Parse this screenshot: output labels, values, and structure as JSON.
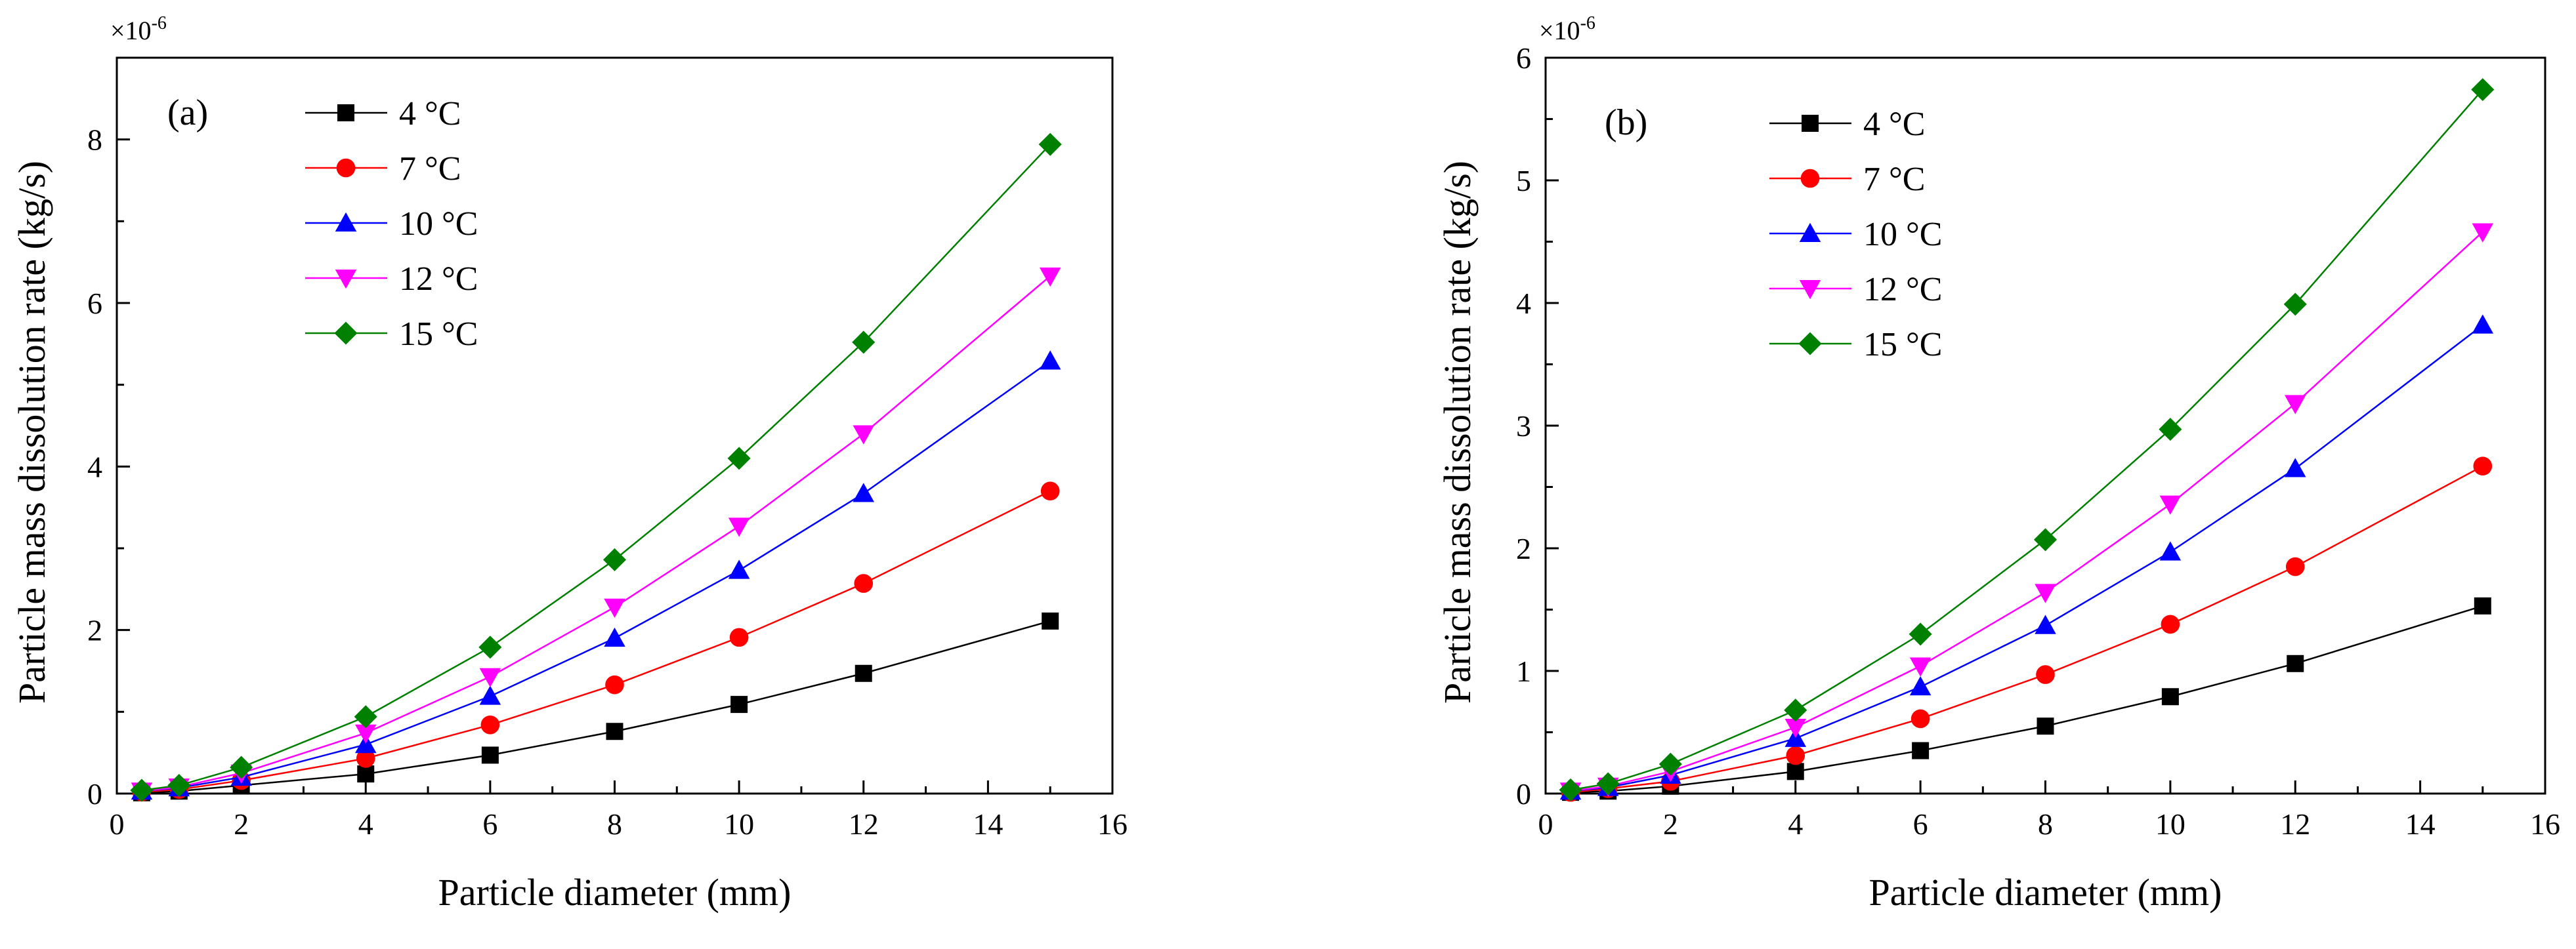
{
  "chart_data": [
    {
      "type": "line",
      "panel_label": "(a)",
      "xlabel": "Particle diameter (mm)",
      "ylabel": "Particle mass dissolution rate (kg/s)",
      "y_multiplier": "×10",
      "y_exponent": "-6",
      "xlim": [
        0,
        16
      ],
      "ylim": [
        0,
        9
      ],
      "xticks": [
        "0",
        "2",
        "4",
        "6",
        "8",
        "10",
        "12",
        "14",
        "16"
      ],
      "xtick_values": [
        0,
        2,
        4,
        6,
        8,
        10,
        12,
        14,
        16
      ],
      "yticks": [
        "0",
        "2",
        "4",
        "6",
        "8"
      ],
      "ytick_values": [
        0,
        2,
        4,
        6,
        8
      ],
      "legend_position": "top-left",
      "x": [
        0.4,
        1,
        2,
        4,
        6,
        8,
        10,
        12,
        15
      ],
      "series": [
        {
          "name": "4 °C",
          "color": "#000000",
          "marker": "square",
          "values": [
            0.01,
            0.03,
            0.1,
            0.24,
            0.47,
            0.76,
            1.09,
            1.47,
            2.11
          ]
        },
        {
          "name": "7 °C",
          "color": "#ff0000",
          "marker": "circle",
          "values": [
            0.02,
            0.05,
            0.16,
            0.43,
            0.84,
            1.33,
            1.91,
            2.57,
            3.7
          ]
        },
        {
          "name": "10 °C",
          "color": "#0000ff",
          "marker": "triangle-up",
          "values": [
            0.03,
            0.07,
            0.2,
            0.6,
            1.19,
            1.9,
            2.73,
            3.67,
            5.29
          ]
        },
        {
          "name": "12 °C",
          "color": "#ff00ff",
          "marker": "triangle-down",
          "values": [
            0.03,
            0.08,
            0.25,
            0.74,
            1.43,
            2.28,
            3.27,
            4.4,
            6.33
          ]
        },
        {
          "name": "15 °C",
          "color": "#008000",
          "marker": "diamond",
          "values": [
            0.04,
            0.1,
            0.32,
            0.94,
            1.79,
            2.86,
            4.1,
            5.52,
            7.94
          ]
        }
      ]
    },
    {
      "type": "line",
      "panel_label": "(b)",
      "xlabel": "Particle diameter (mm)",
      "ylabel": "Particle mass dissolution rate (kg/s)",
      "y_multiplier": "×10",
      "y_exponent": "-6",
      "xlim": [
        0,
        16
      ],
      "ylim": [
        0,
        6
      ],
      "xticks": [
        "0",
        "2",
        "4",
        "6",
        "8",
        "10",
        "12",
        "14",
        "16"
      ],
      "xtick_values": [
        0,
        2,
        4,
        6,
        8,
        10,
        12,
        14,
        16
      ],
      "yticks": [
        "0",
        "1",
        "2",
        "3",
        "4",
        "5",
        "6"
      ],
      "ytick_values": [
        0,
        1,
        2,
        3,
        4,
        5,
        6
      ],
      "legend_position": "top-left",
      "x": [
        0.4,
        1,
        2,
        4,
        6,
        8,
        10,
        12,
        15
      ],
      "series": [
        {
          "name": "4 °C",
          "color": "#000000",
          "marker": "square",
          "values": [
            0.01,
            0.02,
            0.06,
            0.18,
            0.35,
            0.55,
            0.79,
            1.06,
            1.53
          ]
        },
        {
          "name": "7 °C",
          "color": "#ff0000",
          "marker": "circle",
          "values": [
            0.01,
            0.04,
            0.1,
            0.31,
            0.61,
            0.97,
            1.38,
            1.85,
            2.67
          ]
        },
        {
          "name": "10 °C",
          "color": "#0000ff",
          "marker": "triangle-up",
          "values": [
            0.02,
            0.05,
            0.15,
            0.45,
            0.87,
            1.37,
            1.97,
            2.65,
            3.82
          ]
        },
        {
          "name": "12 °C",
          "color": "#ff00ff",
          "marker": "triangle-down",
          "values": [
            0.02,
            0.06,
            0.18,
            0.54,
            1.04,
            1.64,
            2.36,
            3.18,
            4.58
          ]
        },
        {
          "name": "15 °C",
          "color": "#008000",
          "marker": "diamond",
          "values": [
            0.03,
            0.08,
            0.24,
            0.68,
            1.3,
            2.07,
            2.97,
            3.99,
            5.74
          ]
        }
      ]
    }
  ]
}
